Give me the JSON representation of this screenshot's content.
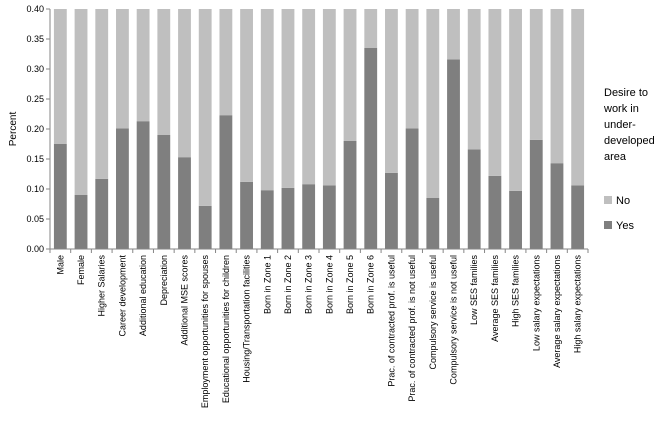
{
  "chart_data": {
    "type": "bar",
    "stacked": true,
    "ylabel": "Percent",
    "xlabel": "",
    "ylim": [
      0,
      0.4
    ],
    "yticks": [
      "0.00",
      "0.05",
      "0.10",
      "0.15",
      "0.20",
      "0.25",
      "0.30",
      "0.35",
      "0.40"
    ],
    "ytick_values": [
      0,
      0.05,
      0.1,
      0.15,
      0.2,
      0.25,
      0.3,
      0.35,
      0.4
    ],
    "grid": false,
    "legend_title": [
      "Desire to",
      "work in",
      "under-",
      "developed",
      "area"
    ],
    "legend_position": "right",
    "categories": [
      "Male",
      "Female",
      "Higher Salaries",
      "Career development",
      "Additional education",
      "Depreciation",
      "Additional MSE scores",
      "Employment opportunities for spouses",
      "Educational opportunities for children",
      "Housing/Transportation facilities",
      "Born in Zone 1",
      "Born in Zone 2",
      "Born in Zone 3",
      "Born in Zone 4",
      "Born in Zone 5",
      "Born in Zone 6",
      "Prac. of contracted prof. is useful",
      "Prac. of contracted prof. is not useful",
      "Compulsory service is useful",
      "Compulsory service is not useful",
      "Low SES families",
      "Average SES families",
      "High SES families",
      "Low salary expectations",
      "Average salary expectations",
      "High salary expectations"
    ],
    "series": [
      {
        "name": "Yes",
        "color": "#7f7f7f",
        "values": [
          0.175,
          0.09,
          0.117,
          0.201,
          0.213,
          0.19,
          0.153,
          0.072,
          0.223,
          0.112,
          0.098,
          0.102,
          0.108,
          0.106,
          0.18,
          0.335,
          0.127,
          0.201,
          0.085,
          0.316,
          0.166,
          0.122,
          0.097,
          0.182,
          0.143,
          0.106
        ]
      },
      {
        "name": "No",
        "color": "#bfbfbf",
        "values": [
          0.225,
          0.31,
          0.283,
          0.199,
          0.187,
          0.21,
          0.247,
          0.328,
          0.177,
          0.288,
          0.302,
          0.298,
          0.292,
          0.294,
          0.22,
          0.065,
          0.273,
          0.199,
          0.315,
          0.084,
          0.234,
          0.278,
          0.303,
          0.218,
          0.257,
          0.294
        ]
      }
    ]
  }
}
